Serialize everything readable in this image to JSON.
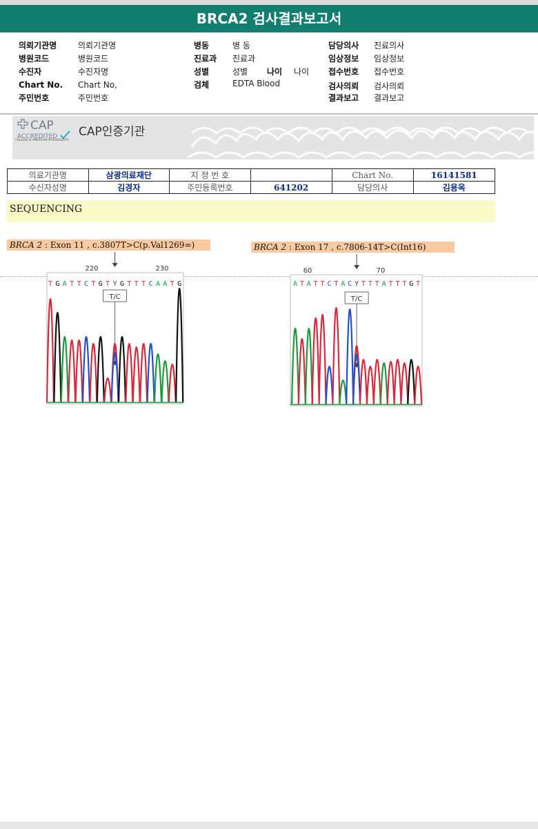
{
  "title": "BRCA2 검사결과보고서",
  "header_fields": [
    {
      "label": "의뢰기관명",
      "value": "의뢰기관명"
    },
    {
      "label": "병원코드",
      "value": "병원코드"
    },
    {
      "label": "수진자",
      "value": "수진자명"
    },
    {
      "label": "Chart No.",
      "value": "Chart No,"
    },
    {
      "label": "주민번호",
      "value": "주민번호"
    },
    {
      "label": "병동",
      "value": "병 동"
    },
    {
      "label": "진료과",
      "value": "진료과"
    },
    {
      "label": "성별",
      "value": "성별"
    },
    {
      "label": "나이",
      "value": "나이"
    },
    {
      "label": "검체",
      "value": "EDTA Blood"
    },
    {
      "label": "담당의사",
      "value": "진료의사"
    },
    {
      "label": "임상정보",
      "value": "임상정보"
    },
    {
      "label": "접수번호",
      "value": "접수번호"
    },
    {
      "label": "검사의뢰",
      "value": "검사의뢰"
    },
    {
      "label": "결과보고",
      "value": "결과보고"
    }
  ],
  "cap": {
    "logo_text": "CAP",
    "accredited": "ACCREDITED",
    "college": "COLLEGE of AMERICAN PATHOLOGISTS",
    "title": "CAP인증기관"
  },
  "info_table": {
    "row1": [
      "의료기관명",
      "삼광의료재단",
      "지 정 번 호",
      "",
      "Chart No.",
      "16141581"
    ],
    "row2": [
      "수신자성명",
      "김경자",
      "주민등록번호",
      "641202",
      "담당의사",
      "김용옥"
    ]
  },
  "section_title": "SEQUENCING",
  "chromatograms": [
    {
      "gene": "BRCA 2",
      "variant": ": Exon 11 , c.3807T>C(p.Val1269=)",
      "positions": [
        "220",
        "230"
      ],
      "sequence": [
        "T",
        "G",
        "A",
        "T",
        "T",
        "C",
        "T",
        "G",
        "T",
        "Y",
        "G",
        "T",
        "T",
        "T",
        "C",
        "A",
        "A",
        "T",
        "G"
      ],
      "call": "T/C",
      "colors": {
        "A": "#1a9a3a",
        "C": "#2050c8",
        "G": "#111111",
        "T": "#d8283a"
      }
    },
    {
      "gene": "BRCA 2",
      "variant": ": Exon 17 , c.7806-14T>C(Int16)",
      "positions": [
        "60",
        "70"
      ],
      "sequence": [
        "A",
        "T",
        "A",
        "T",
        "T",
        "C",
        "T",
        "A",
        "C",
        "Y",
        "T",
        "T",
        "T",
        "A",
        "T",
        "T",
        "T",
        "G",
        "T"
      ],
      "call": "T/C",
      "colors": {
        "A": "#1a9a3a",
        "C": "#2050c8",
        "G": "#111111",
        "T": "#d8283a"
      }
    }
  ]
}
